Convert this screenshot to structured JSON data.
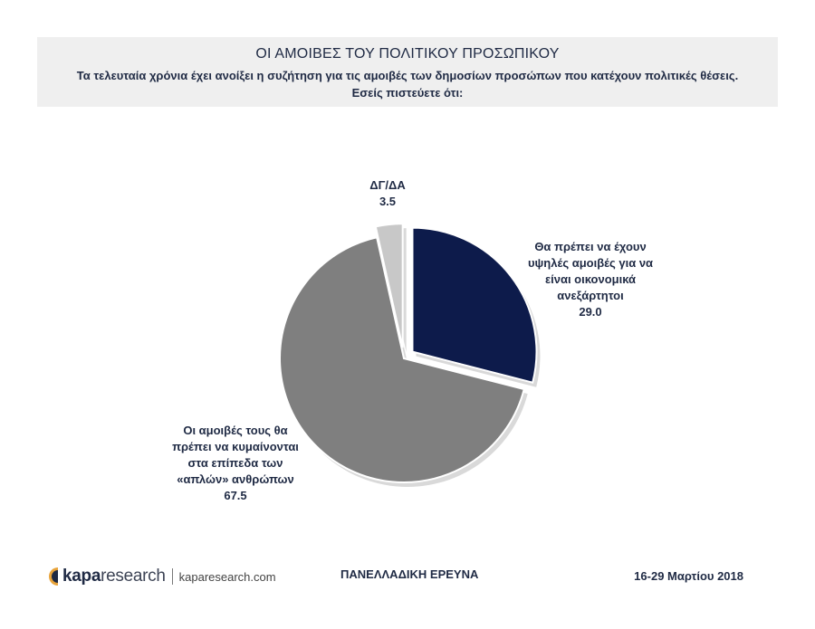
{
  "header": {
    "title": "ΟΙ  ΑΜΟΙΒΕΣ ΤΟΥ ΠΟΛΙΤΙΚΟΥ ΠΡΟΣΩΠΙΚΟΥ",
    "subtitle": "Τα τελευταία χρόνια έχει ανοίξει η συζήτηση για τις αμοιβές των δημοσίων προσώπων που κατέχουν πολιτικές θέσεις.\nΕσείς πιστεύετε ότι:"
  },
  "chart_data": {
    "type": "pie",
    "slices": [
      {
        "label": "Θα πρέπει να έχουν υψηλές αμοιβές για να είναι οικονομικά ανεξάρτητοι",
        "value": 29.0,
        "value_label": "29.0",
        "color": "#0d1b4b",
        "exploded": true
      },
      {
        "label": "Οι αμοιβές τους θα πρέπει να κυμαίνονται στα επίπεδα των «απλών» ανθρώπων",
        "value": 67.5,
        "value_label": "67.5",
        "color": "#7f7f7f",
        "exploded": false
      },
      {
        "label": "ΔΓ/ΔΑ",
        "value": 3.5,
        "value_label": "3.5",
        "color": "#c8c8c8",
        "exploded": true
      }
    ],
    "start_angle_deg": 0,
    "direction": "clockwise"
  },
  "footer": {
    "brand_bold": "kapa",
    "brand_light": "research",
    "url": "kaparesearch.com",
    "survey": "ΠΑΝΕΛΛΑΔΙΚΗ ΕΡΕΥΝΑ",
    "date": "16-29 Μαρτίου 2018"
  }
}
